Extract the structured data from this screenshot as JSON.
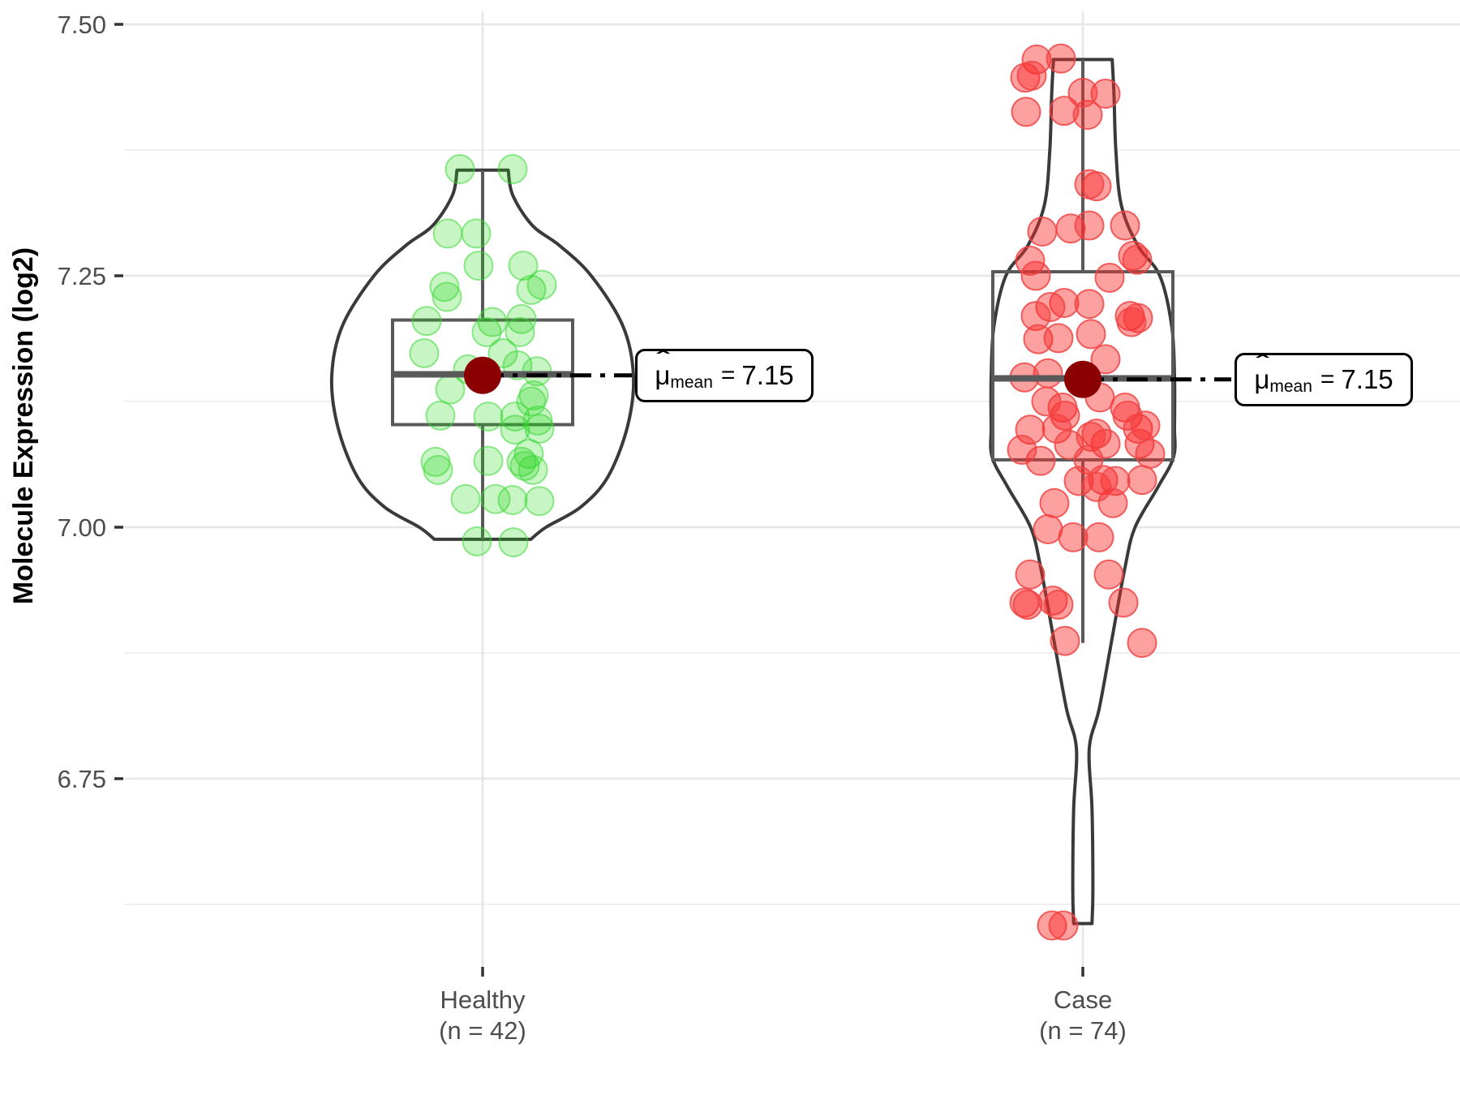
{
  "chart_data": {
    "type": "violin",
    "title": "",
    "xlabel": "",
    "ylabel": "Molecule Expression (log2)",
    "ylim": [
      6.56,
      7.52
    ],
    "y_major_ticks": [
      7.5,
      7.25,
      7.0,
      6.75
    ],
    "y_tick_labels": [
      "7.50",
      "7.25",
      "7.00",
      "6.75"
    ],
    "y_minor_ticks": [
      7.375,
      7.125,
      6.875,
      6.625
    ],
    "grid": "major+minor, horizontal + one vertical per category",
    "legend": "none",
    "groups": [
      {
        "name": "Healthy",
        "label_line1": "Healthy",
        "label_line2": "(n = 42)",
        "n": 42,
        "mean": 7.151,
        "box": {
          "whisker_low": 6.988,
          "q1": 7.102,
          "median": 7.152,
          "q3": 7.206,
          "whisker_high": 7.355
        },
        "annotation": {
          "hat": "ˆ",
          "mu": "μ",
          "sub": "mean",
          "eq": "=",
          "value": "7.15"
        },
        "violin_profile": [
          [
            7.355,
            0.17
          ],
          [
            7.33,
            0.2
          ],
          [
            7.3,
            0.33
          ],
          [
            7.28,
            0.51
          ],
          [
            7.25,
            0.72
          ],
          [
            7.2,
            0.93
          ],
          [
            7.15,
            1.0
          ],
          [
            7.1,
            0.96
          ],
          [
            7.05,
            0.83
          ],
          [
            7.02,
            0.65
          ],
          [
            7.0,
            0.42
          ],
          [
            6.988,
            0.32
          ]
        ],
        "points": [
          [
            -28,
            7.356
          ],
          [
            37,
            7.356
          ],
          [
            -43,
            7.292
          ],
          [
            -8,
            7.292
          ],
          [
            -5,
            7.26
          ],
          [
            50,
            7.26
          ],
          [
            -47,
            7.239
          ],
          [
            -44,
            7.229
          ],
          [
            60,
            7.236
          ],
          [
            73,
            7.241
          ],
          [
            -69,
            7.205
          ],
          [
            12,
            7.204
          ],
          [
            48,
            7.207
          ],
          [
            5,
            7.194
          ],
          [
            46,
            7.194
          ],
          [
            -72,
            7.173
          ],
          [
            25,
            7.173
          ],
          [
            -18,
            7.157
          ],
          [
            43,
            7.161
          ],
          [
            67,
            7.155
          ],
          [
            -40,
            7.137
          ],
          [
            63,
            7.131
          ],
          [
            60,
            7.125
          ],
          [
            -52,
            7.111
          ],
          [
            7,
            7.11
          ],
          [
            40,
            7.11
          ],
          [
            68,
            7.106
          ],
          [
            40,
            7.097
          ],
          [
            70,
            7.098
          ],
          [
            -58,
            7.065
          ],
          [
            7,
            7.066
          ],
          [
            48,
            7.065
          ],
          [
            57,
            7.073
          ],
          [
            -55,
            7.057
          ],
          [
            52,
            7.061
          ],
          [
            62,
            7.057
          ],
          [
            -21,
            7.028
          ],
          [
            16,
            7.028
          ],
          [
            37,
            7.027
          ],
          [
            70,
            7.026
          ],
          [
            -7,
            6.986
          ],
          [
            38,
            6.985
          ]
        ]
      },
      {
        "name": "Case",
        "label_line1": "Case",
        "label_line2": "(n = 74)",
        "n": 74,
        "mean": 7.147,
        "box": {
          "whisker_low": 6.885,
          "q1": 7.067,
          "median": 7.148,
          "q3": 7.254,
          "whisker_high": 7.465
        },
        "annotation": {
          "hat": "ˆ",
          "mu": "μ",
          "sub": "mean",
          "eq": "=",
          "value": "7.15"
        },
        "violin_profile": [
          [
            7.465,
            0.32
          ],
          [
            7.43,
            0.34
          ],
          [
            7.375,
            0.36
          ],
          [
            7.32,
            0.42
          ],
          [
            7.28,
            0.6
          ],
          [
            7.25,
            0.84
          ],
          [
            7.2,
            0.97
          ],
          [
            7.15,
            1.0
          ],
          [
            7.1,
            1.0
          ],
          [
            7.07,
            0.99
          ],
          [
            7.04,
            0.82
          ],
          [
            7.0,
            0.57
          ],
          [
            6.96,
            0.46
          ],
          [
            6.89,
            0.32
          ],
          [
            6.82,
            0.18
          ],
          [
            6.78,
            0.07
          ],
          [
            6.72,
            0.1
          ],
          [
            6.64,
            0.11
          ],
          [
            6.606,
            0.1
          ]
        ],
        "points": [
          [
            -57,
            7.465
          ],
          [
            -27,
            7.466
          ],
          [
            -71,
            7.447
          ],
          [
            -63,
            7.449
          ],
          [
            -70,
            7.413
          ],
          [
            -23,
            7.414
          ],
          [
            6,
            7.41
          ],
          [
            28,
            7.431
          ],
          [
            0,
            7.432
          ],
          [
            17,
            7.339
          ],
          [
            8,
            7.341
          ],
          [
            -50,
            7.294
          ],
          [
            -15,
            7.297
          ],
          [
            8,
            7.3
          ],
          [
            52,
            7.3
          ],
          [
            -65,
            7.265
          ],
          [
            62,
            7.27
          ],
          [
            67,
            7.266
          ],
          [
            -58,
            7.25
          ],
          [
            33,
            7.248
          ],
          [
            -23,
            7.223
          ],
          [
            -40,
            7.219
          ],
          [
            8,
            7.222
          ],
          [
            -58,
            7.21
          ],
          [
            58,
            7.21
          ],
          [
            68,
            7.208
          ],
          [
            -55,
            7.187
          ],
          [
            -30,
            7.188
          ],
          [
            10,
            7.192
          ],
          [
            60,
            7.204
          ],
          [
            -43,
            7.153
          ],
          [
            28,
            7.167
          ],
          [
            -72,
            7.149
          ],
          [
            -25,
            7.119
          ],
          [
            -22,
            7.111
          ],
          [
            52,
            7.119
          ],
          [
            55,
            7.111
          ],
          [
            -65,
            7.097
          ],
          [
            -32,
            7.098
          ],
          [
            17,
            7.093
          ],
          [
            28,
            7.083
          ],
          [
            -17,
            7.082
          ],
          [
            10,
            7.09
          ],
          [
            68,
            7.098
          ],
          [
            70,
            7.083
          ],
          [
            -52,
            7.066
          ],
          [
            7,
            7.067
          ],
          [
            -5,
            7.046
          ],
          [
            25,
            7.047
          ],
          [
            40,
            7.046
          ],
          [
            73,
            7.047
          ],
          [
            -12,
            6.99
          ],
          [
            20,
            6.99
          ],
          [
            -65,
            6.953
          ],
          [
            32,
            6.953
          ],
          [
            -72,
            6.925
          ],
          [
            -68,
            6.923
          ],
          [
            -37,
            6.927
          ],
          [
            -30,
            6.923
          ],
          [
            50,
            6.925
          ],
          [
            -22,
            6.887
          ],
          [
            73,
            6.885
          ],
          [
            -38,
            6.604
          ],
          [
            -24,
            6.604
          ],
          [
            -3,
            7.145
          ],
          [
            21,
            7.129
          ],
          [
            -45,
            7.125
          ],
          [
            83,
            7.073
          ],
          [
            -35,
            7.024
          ],
          [
            37,
            7.024
          ],
          [
            -43,
            6.998
          ],
          [
            77,
            7.101
          ],
          [
            17,
            7.04
          ],
          [
            -75,
            7.077
          ]
        ]
      }
    ]
  },
  "colors": {
    "background": "#FFFFFF",
    "grid_major": "#E6E6E6",
    "grid_minor": "#F0F0F0",
    "axis_text": "#4D4D4D",
    "tick_mark": "#333333",
    "violin_stroke": "#3A3A3A",
    "violin_fill": "#FFFFFF",
    "box_stroke": "#595959",
    "mean_point": "#8B0000",
    "callout_line": "#000000",
    "healthy_point_fill": "rgba(30,215,20,0.25)",
    "healthy_point_stroke": "rgba(60,215,55,0.55)",
    "case_point_fill": "rgba(250,45,45,0.45)",
    "case_point_stroke": "rgba(238,70,70,0.85)"
  }
}
